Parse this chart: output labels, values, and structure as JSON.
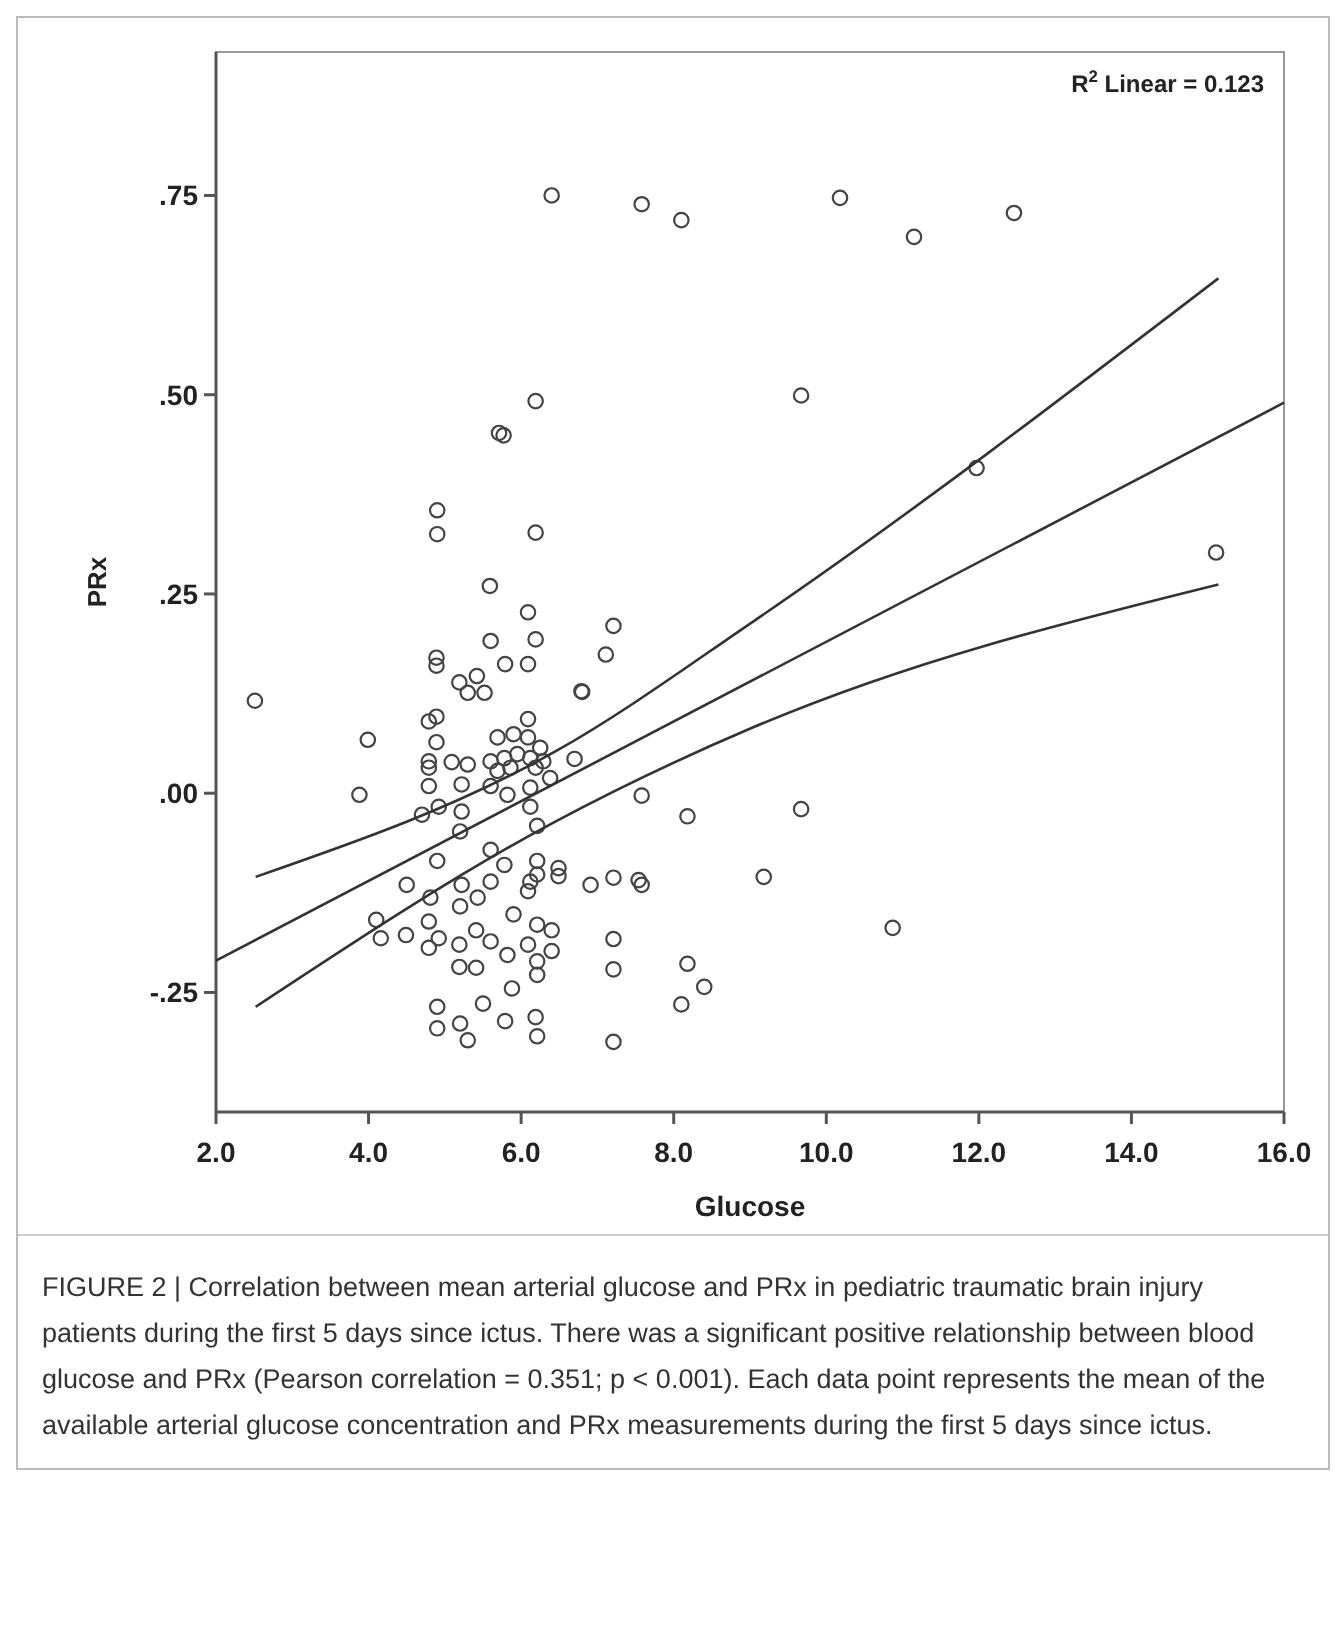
{
  "chart_data": {
    "type": "scatter",
    "xlabel": "Glucose",
    "ylabel": "PRx",
    "xlim": [
      2,
      16
    ],
    "ylim": [
      -0.4,
      0.93
    ],
    "xticks": [
      {
        "value": 2,
        "label": "2.0"
      },
      {
        "value": 4,
        "label": "4.0"
      },
      {
        "value": 6,
        "label": "6.0"
      },
      {
        "value": 8,
        "label": "8.0"
      },
      {
        "value": 10,
        "label": "10.0"
      },
      {
        "value": 12,
        "label": "12.0"
      },
      {
        "value": 14,
        "label": "14.0"
      },
      {
        "value": 16,
        "label": "16.0"
      }
    ],
    "yticks": [
      {
        "value": -0.25,
        "label": "-.25"
      },
      {
        "value": 0,
        "label": ".00"
      },
      {
        "value": 0.25,
        "label": ".25"
      },
      {
        "value": 0.5,
        "label": ".50"
      },
      {
        "value": 0.75,
        "label": ".75"
      }
    ],
    "grid": false,
    "marker": "circle",
    "annotations": [
      "R$^{2}$ Linear = 0.123",
      "FIGURE 2 | Correlation between mean arterial glucose and PRx in pediatric traumatic brain injury patients during the first 5 days since ictus. There was a significant positive relationship between blood glucose and PRx (Pearson correlation = 0.351; p < 0.001). Each data point represents the mean of the available arterial glucose concentration and PRx measurements during the first 5 days since ictus."
    ],
    "series": [
      {
        "type": "scatter",
        "color": "#444444",
        "x": [
          6.4,
          7.58,
          8.1,
          6.19,
          5.71,
          5.77,
          4.9,
          4.9,
          6.19,
          10.18,
          11.15,
          12.46,
          9.67,
          11.97,
          15.11,
          9.67,
          9.18,
          10.87,
          5.59,
          6.09,
          7.21,
          5.6,
          6.19,
          7.11,
          4.89,
          4.89,
          5.79,
          6.09,
          5.19,
          5.42,
          5.3,
          5.52,
          6.79,
          6.8,
          2.51,
          4.89,
          4.79,
          6.09,
          3.99,
          4.89,
          5.69,
          5.9,
          6.09,
          6.25,
          4.79,
          4.79,
          5.09,
          5.3,
          5.6,
          5.78,
          5.95,
          6.12,
          6.29,
          5.86,
          5.69,
          6.7,
          3.88,
          4.79,
          5.22,
          5.6,
          5.82,
          6.12,
          6.38,
          4.7,
          4.92,
          5.22,
          6.12,
          6.21,
          7.58,
          8.18,
          5.2,
          5.6,
          4.9,
          5.78,
          6.21,
          6.49,
          6.49,
          6.91,
          7.21,
          7.54,
          7.58,
          4.5,
          5.22,
          5.6,
          6.12,
          4.81,
          5.2,
          5.43,
          6.09,
          6.21,
          4.1,
          4.16,
          4.49,
          4.79,
          4.79,
          4.92,
          5.19,
          5.41,
          5.6,
          5.82,
          5.9,
          6.21,
          6.4,
          6.09,
          6.21,
          6.4,
          5.19,
          5.41,
          5.88,
          6.21,
          7.21,
          7.21,
          8.18,
          8.4,
          8.1,
          5.5,
          4.9,
          4.9,
          5.2,
          5.3,
          5.79,
          6.19,
          6.21,
          7.21,
          6.19
        ],
        "values": [
          0.75,
          0.739,
          0.719,
          0.492,
          0.452,
          0.449,
          0.355,
          0.325,
          0.327,
          0.747,
          0.698,
          0.728,
          0.499,
          0.408,
          0.302,
          -0.02,
          -0.105,
          -0.169,
          0.26,
          0.227,
          0.21,
          0.191,
          0.193,
          0.174,
          0.17,
          0.16,
          0.162,
          0.162,
          0.139,
          0.147,
          0.126,
          0.126,
          0.128,
          0.127,
          0.116,
          0.096,
          0.09,
          0.093,
          0.067,
          0.064,
          0.07,
          0.074,
          0.07,
          0.057,
          0.04,
          0.032,
          0.039,
          0.036,
          0.04,
          0.044,
          0.049,
          0.044,
          0.04,
          0.032,
          0.028,
          0.043,
          -0.002,
          0.009,
          0.011,
          0.009,
          -0.002,
          0.007,
          0.019,
          -0.027,
          -0.017,
          -0.023,
          -0.017,
          -0.041,
          -0.003,
          -0.029,
          -0.048,
          -0.071,
          -0.085,
          -0.09,
          -0.085,
          -0.094,
          -0.104,
          -0.115,
          -0.106,
          -0.109,
          -0.115,
          -0.115,
          -0.115,
          -0.111,
          -0.111,
          -0.131,
          -0.142,
          -0.131,
          -0.123,
          -0.102,
          -0.159,
          -0.182,
          -0.178,
          -0.161,
          -0.194,
          -0.182,
          -0.19,
          -0.172,
          -0.186,
          -0.203,
          -0.152,
          -0.165,
          -0.172,
          -0.19,
          -0.211,
          -0.198,
          -0.218,
          -0.219,
          -0.245,
          -0.228,
          -0.183,
          -0.221,
          -0.214,
          -0.243,
          -0.265,
          -0.264,
          -0.268,
          -0.295,
          -0.289,
          -0.31,
          -0.286,
          -0.281,
          -0.305,
          -0.312,
          0.032
        ]
      },
      {
        "type": "line",
        "color": "#333333",
        "marker": "none",
        "x": [
          2,
          16
        ],
        "values": [
          -0.21,
          0.49
        ]
      },
      {
        "type": "line",
        "color": "#333333",
        "marker": "none",
        "x": [
          2.52,
          6.46,
          9.05,
          15.14
        ],
        "values": [
          -0.105,
          0.053,
          0.216,
          0.646
        ]
      },
      {
        "type": "line",
        "color": "#333333",
        "marker": "none",
        "x": [
          2.52,
          6.46,
          9.05,
          15.14
        ],
        "values": [
          -0.268,
          -0.035,
          0.083,
          0.262
        ]
      }
    ]
  }
}
